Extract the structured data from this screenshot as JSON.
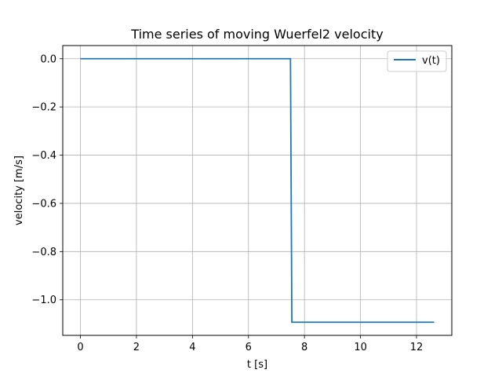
{
  "chart_data": {
    "type": "line",
    "title": "Time series of moving Wuerfel2 velocity",
    "xlabel": "t [s]",
    "ylabel": "velocity [m/s]",
    "xlim": [
      -0.63,
      13.26
    ],
    "ylim": [
      -1.1475,
      0.0546
    ],
    "xticks": [
      0,
      2,
      4,
      6,
      8,
      10,
      12
    ],
    "xtick_labels": [
      "0",
      "2",
      "4",
      "6",
      "8",
      "10",
      "12"
    ],
    "yticks": [
      0.0,
      -0.2,
      -0.4,
      -0.6,
      -0.8,
      -1.0
    ],
    "ytick_labels": [
      "0.0",
      "−0.2",
      "−0.4",
      "−0.6",
      "−0.8",
      "−1.0"
    ],
    "grid": true,
    "legend_position": "top-right",
    "series": [
      {
        "name": "v(t)",
        "color": "#1f77b4",
        "x": [
          0.0,
          7.5,
          7.55,
          12.63
        ],
        "y": [
          0.0,
          0.0,
          -1.093,
          -1.093
        ]
      }
    ]
  }
}
